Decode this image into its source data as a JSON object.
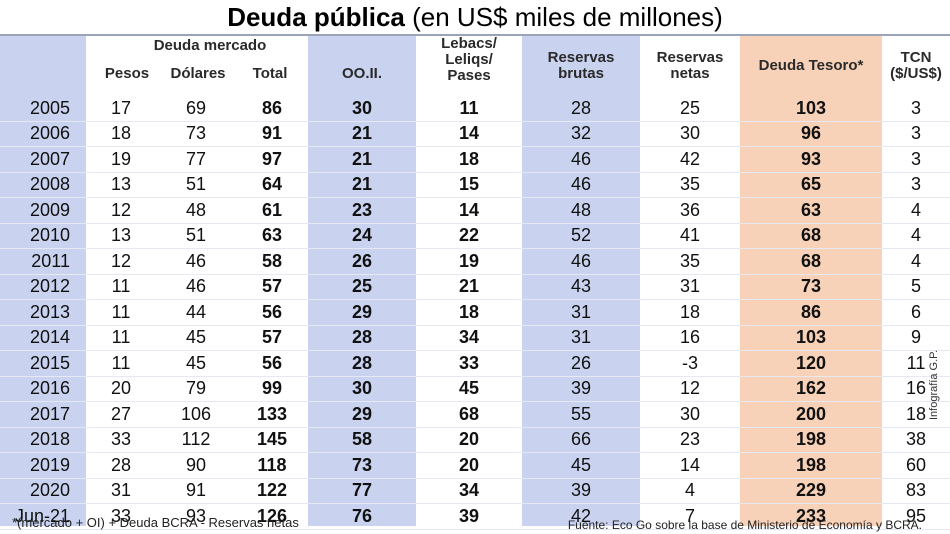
{
  "title": {
    "main": "Deuda pública",
    "sub": "(en US$ miles de millones)"
  },
  "headers": {
    "deuda_mercado": "Deuda mercado",
    "pesos": "Pesos",
    "dolares": "Dólares",
    "total": "Total",
    "ooii": "OO.II.",
    "lebacs_1": "Lebacs/",
    "lebacs_2": "Leliqs/",
    "lebacs_3": "Pases",
    "res_brutas_1": "Reservas",
    "res_brutas_2": "brutas",
    "res_netas_1": "Reservas",
    "res_netas_2": "netas",
    "deuda_tesoro": "Deuda Tesoro*",
    "tcn_1": "TCN",
    "tcn_2": "($/US$)"
  },
  "rows": [
    [
      "2005",
      "17",
      "69",
      "86",
      "30",
      "11",
      "28",
      "25",
      "103",
      "3"
    ],
    [
      "2006",
      "18",
      "73",
      "91",
      "21",
      "14",
      "32",
      "30",
      "96",
      "3"
    ],
    [
      "2007",
      "19",
      "77",
      "97",
      "21",
      "18",
      "46",
      "42",
      "93",
      "3"
    ],
    [
      "2008",
      "13",
      "51",
      "64",
      "21",
      "15",
      "46",
      "35",
      "65",
      "3"
    ],
    [
      "2009",
      "12",
      "48",
      "61",
      "23",
      "14",
      "48",
      "36",
      "63",
      "4"
    ],
    [
      "2010",
      "13",
      "51",
      "63",
      "24",
      "22",
      "52",
      "41",
      "68",
      "4"
    ],
    [
      "2011",
      "12",
      "46",
      "58",
      "26",
      "19",
      "46",
      "35",
      "68",
      "4"
    ],
    [
      "2012",
      "11",
      "46",
      "57",
      "25",
      "21",
      "43",
      "31",
      "73",
      "5"
    ],
    [
      "2013",
      "11",
      "44",
      "56",
      "29",
      "18",
      "31",
      "18",
      "86",
      "6"
    ],
    [
      "2014",
      "11",
      "45",
      "57",
      "28",
      "34",
      "31",
      "16",
      "103",
      "9"
    ],
    [
      "2015",
      "11",
      "45",
      "56",
      "28",
      "33",
      "26",
      "-3",
      "120",
      "11"
    ],
    [
      "2016",
      "20",
      "79",
      "99",
      "30",
      "45",
      "39",
      "12",
      "162",
      "16"
    ],
    [
      "2017",
      "27",
      "106",
      "133",
      "29",
      "68",
      "55",
      "30",
      "200",
      "18"
    ],
    [
      "2018",
      "33",
      "112",
      "145",
      "58",
      "20",
      "66",
      "23",
      "198",
      "38"
    ],
    [
      "2019",
      "28",
      "90",
      "118",
      "73",
      "20",
      "45",
      "14",
      "198",
      "60"
    ],
    [
      "2020",
      "31",
      "91",
      "122",
      "77",
      "34",
      "39",
      "4",
      "229",
      "83"
    ],
    [
      "Jun-21",
      "33",
      "93",
      "126",
      "76",
      "39",
      "42",
      "7",
      "233",
      "95"
    ]
  ],
  "footnote": "*(mercado + OI) + Deuda BCRA - Reservas netas",
  "source": "Fuente: Eco Go sobre la base de Ministerio de Economía y BCRA.",
  "credit": "Infografía G.P.",
  "colors": {
    "band_blue": "#c9d3f0",
    "band_peach": "#f8d2b8"
  }
}
